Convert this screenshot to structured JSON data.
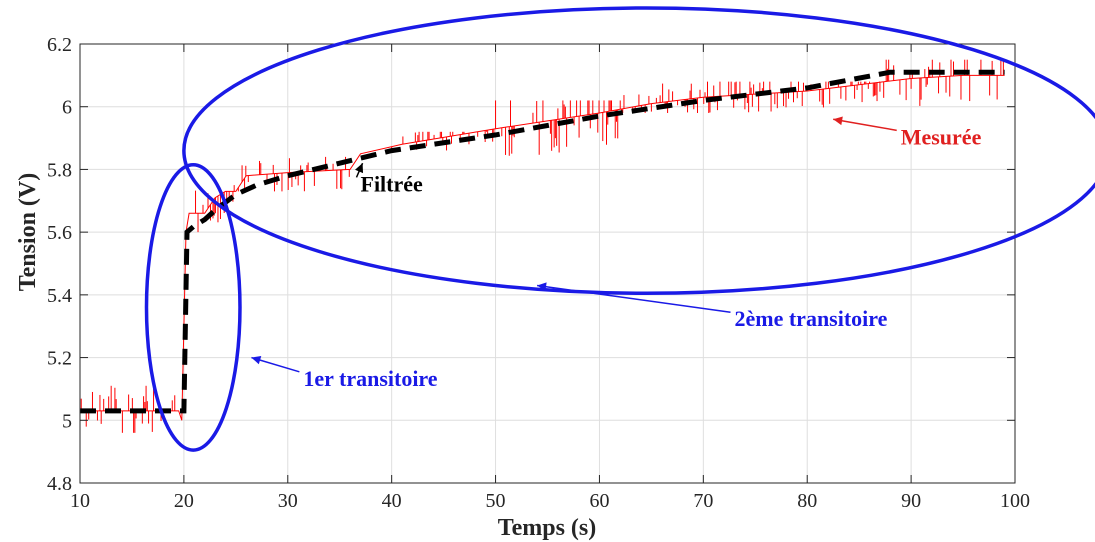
{
  "chart_data": {
    "type": "line",
    "title": "",
    "xlabel": "Temps (s)",
    "ylabel": "Tension (V)",
    "xlim": [
      10,
      100
    ],
    "ylim": [
      4.8,
      6.2
    ],
    "grid": true,
    "x_ticks": [
      10,
      20,
      30,
      40,
      50,
      60,
      70,
      80,
      90,
      100
    ],
    "y_ticks": [
      4.8,
      5,
      5.2,
      5.4,
      5.6,
      5.8,
      6,
      6.2
    ],
    "x_tick_labels": [
      "10",
      "20",
      "30",
      "40",
      "50",
      "60",
      "70",
      "80",
      "90",
      "100"
    ],
    "y_tick_labels": [
      "4.8",
      "5",
      "5.2",
      "5.4",
      "5.6",
      "5.8",
      "6",
      "6.2"
    ],
    "series": [
      {
        "name": "Mesurée",
        "color": "#ff0000",
        "style": "solid",
        "x": [
          10,
          19.5,
          19.8,
          20.2,
          20.5,
          21,
          22,
          23,
          24,
          25,
          26,
          30,
          36,
          37,
          41,
          50,
          60,
          65,
          70,
          80,
          90,
          95,
          99
        ],
        "y": [
          5.03,
          5.03,
          5.0,
          5.6,
          5.66,
          5.66,
          5.66,
          5.71,
          5.73,
          5.73,
          5.78,
          5.79,
          5.8,
          5.85,
          5.88,
          5.93,
          5.98,
          6.01,
          6.03,
          6.05,
          6.09,
          6.1,
          6.1
        ],
        "noise": [
          {
            "x_from": 10,
            "x_to": 19.5,
            "level": 5.03,
            "low": 4.96,
            "high": 5.11
          },
          {
            "x_from": 21,
            "x_to": 25,
            "level": 5.66,
            "low": 5.6,
            "high": 5.75
          },
          {
            "x_from": 25,
            "x_to": 36,
            "level": 5.78,
            "low": 5.73,
            "high": 5.84
          },
          {
            "x_from": 40,
            "x_to": 50,
            "level": 5.88,
            "low": 5.84,
            "high": 5.92
          },
          {
            "x_from": 50,
            "x_to": 62,
            "level": 5.93,
            "low": 5.84,
            "high": 6.02
          },
          {
            "x_from": 62,
            "x_to": 87,
            "level": 6.03,
            "low": 5.98,
            "high": 6.08
          },
          {
            "x_from": 87,
            "x_to": 99,
            "level": 6.09,
            "low": 6.0,
            "high": 6.15
          }
        ]
      },
      {
        "name": "Filtrée",
        "color": "#000000",
        "style": "dashed",
        "x": [
          10,
          19.5,
          20,
          20.3,
          21,
          22,
          23,
          25,
          27,
          30,
          35,
          40,
          50,
          60,
          70,
          80,
          88,
          99
        ],
        "y": [
          5.03,
          5.03,
          5.03,
          5.6,
          5.62,
          5.64,
          5.67,
          5.72,
          5.75,
          5.78,
          5.82,
          5.86,
          5.91,
          5.97,
          6.02,
          6.06,
          6.11,
          6.11
        ]
      }
    ],
    "annotations": [
      {
        "text": "Mesurée",
        "color": "#e02020",
        "x": 89,
        "y": 5.88,
        "arrow_to": [
          82.5,
          5.96
        ]
      },
      {
        "text": "Filtrée",
        "color": "#000000",
        "x": 37,
        "y": 5.73,
        "arrow_to": [
          37.2,
          5.82
        ]
      },
      {
        "text": "1er transitoire",
        "color": "#1a1ae6",
        "x": 31.5,
        "y": 5.11,
        "arrow_to": [
          26.5,
          5.2
        ]
      },
      {
        "text": "2ème transitoire",
        "color": "#1a1ae6",
        "x": 73,
        "y": 5.3,
        "arrow_to": [
          54,
          5.43
        ]
      }
    ],
    "ellipses": [
      {
        "name": "1er transitoire",
        "cx": 20.9,
        "cy": 5.36,
        "rx": 4.5,
        "ry": 0.455,
        "color": "#1a1ae6"
      },
      {
        "name": "2ème transitoire",
        "cx": 64.5,
        "cy": 5.86,
        "rx": 44.5,
        "ry": 0.455,
        "color": "#1a1ae6"
      }
    ]
  }
}
